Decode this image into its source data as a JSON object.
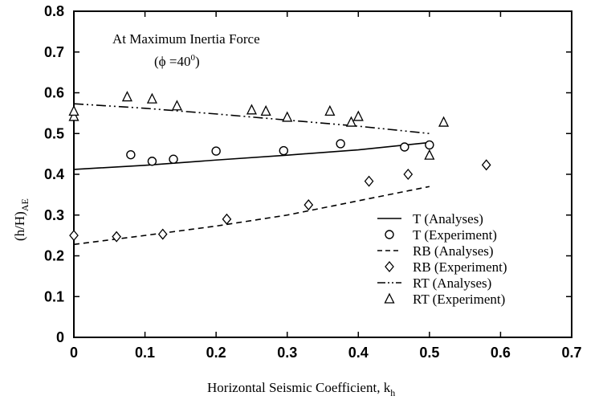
{
  "chart_data": {
    "type": "scatter",
    "xlabel": "Horizontal Seismic Coefficient, k",
    "xlabel_sub": "h",
    "ylabel": "(h/H)",
    "ylabel_sub": "AE",
    "xlim": [
      0,
      0.7
    ],
    "ylim": [
      0,
      0.8
    ],
    "xticks": [
      "0",
      "0.1",
      "0.2",
      "0.3",
      "0.4",
      "0.5",
      "0.6",
      "0.7"
    ],
    "yticks": [
      "0",
      "0.1",
      "0.2",
      "0.3",
      "0.4",
      "0.5",
      "0.6",
      "0.7",
      "0.8"
    ],
    "grid": false,
    "annotation_line1": "At Maximum Inertia Force",
    "annotation_line2_pre": "(",
    "annotation_phi": "ϕ",
    "annotation_line2_mid": " =40",
    "annotation_sup": "0",
    "annotation_line2_post": ")",
    "legend_position": "bottom-right",
    "series": [
      {
        "name": "T (Analyses)",
        "style": "line",
        "dash": "solid",
        "color": "#000000",
        "x": [
          0,
          0.1,
          0.2,
          0.3,
          0.4,
          0.5
        ],
        "y": [
          0.412,
          0.422,
          0.435,
          0.447,
          0.46,
          0.478
        ]
      },
      {
        "name": "T (Experiment)",
        "style": "marker",
        "marker": "circle",
        "color": "#000000",
        "x": [
          0.08,
          0.11,
          0.14,
          0.2,
          0.295,
          0.375,
          0.465,
          0.5
        ],
        "y": [
          0.448,
          0.432,
          0.437,
          0.457,
          0.458,
          0.475,
          0.467,
          0.472
        ]
      },
      {
        "name": "RB (Analyses)",
        "style": "line",
        "dash": "dashed",
        "color": "#000000",
        "x": [
          0,
          0.1,
          0.2,
          0.3,
          0.4,
          0.5
        ],
        "y": [
          0.228,
          0.25,
          0.273,
          0.3,
          0.335,
          0.37
        ]
      },
      {
        "name": "RB (Experiment)",
        "style": "marker",
        "marker": "diamond",
        "color": "#000000",
        "x": [
          0,
          0.06,
          0.125,
          0.215,
          0.33,
          0.415,
          0.47,
          0.58
        ],
        "y": [
          0.25,
          0.247,
          0.253,
          0.29,
          0.325,
          0.383,
          0.4,
          0.423
        ]
      },
      {
        "name": "RT (Analyses)",
        "style": "line",
        "dash": "dashdotdot",
        "color": "#000000",
        "x": [
          0,
          0.1,
          0.2,
          0.3,
          0.4,
          0.5
        ],
        "y": [
          0.573,
          0.562,
          0.548,
          0.533,
          0.518,
          0.5
        ]
      },
      {
        "name": "RT (Experiment)",
        "style": "marker",
        "marker": "triangle",
        "color": "#000000",
        "x": [
          0,
          0,
          0.075,
          0.11,
          0.145,
          0.25,
          0.27,
          0.3,
          0.36,
          0.39,
          0.4,
          0.5,
          0.52
        ],
        "y": [
          0.542,
          0.555,
          0.59,
          0.585,
          0.568,
          0.558,
          0.555,
          0.54,
          0.555,
          0.528,
          0.542,
          0.447,
          0.528
        ]
      }
    ]
  }
}
